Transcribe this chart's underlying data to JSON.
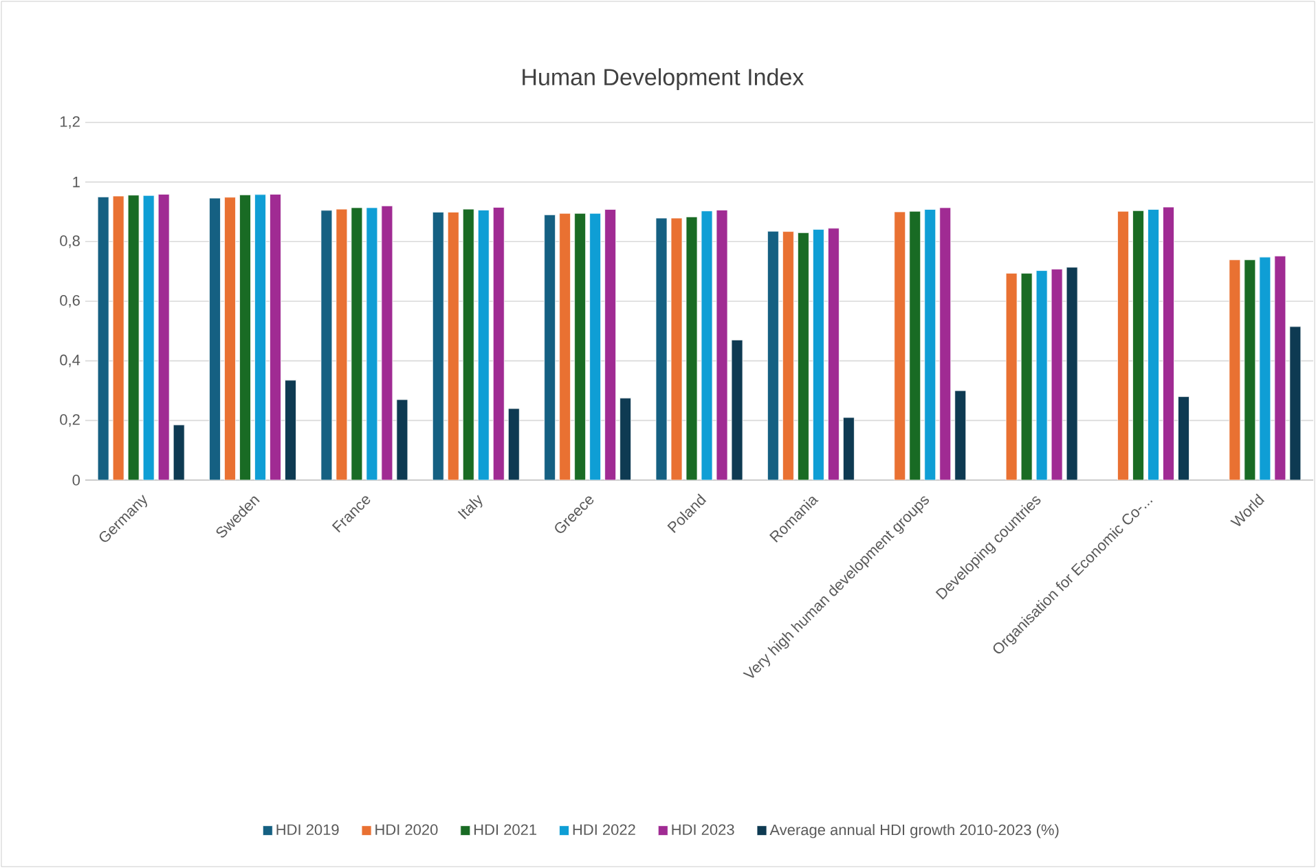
{
  "chart_data": {
    "type": "bar",
    "title": "Human Development Index",
    "categories": [
      "Germany",
      "Sweden",
      "France",
      "Italy",
      "Greece",
      "Poland",
      "Romania",
      "Very high human development groups",
      "Developing countries",
      "Organisation for Economic Co-...",
      "World"
    ],
    "series": [
      {
        "name": "HDI 2019",
        "color": "#156082",
        "values": [
          0.95,
          0.946,
          0.905,
          0.899,
          0.89,
          0.879,
          0.835,
          null,
          null,
          null,
          null
        ]
      },
      {
        "name": "HDI 2020",
        "color": "#e97132",
        "values": [
          0.953,
          0.949,
          0.909,
          0.899,
          0.895,
          0.879,
          0.834,
          0.9,
          0.694,
          0.902,
          0.739
        ]
      },
      {
        "name": "HDI 2021",
        "color": "#196b24",
        "values": [
          0.956,
          0.957,
          0.914,
          0.909,
          0.895,
          0.883,
          0.83,
          0.902,
          0.694,
          0.904,
          0.739
        ]
      },
      {
        "name": "HDI 2022",
        "color": "#0f9ed5",
        "values": [
          0.955,
          0.958,
          0.914,
          0.906,
          0.895,
          0.903,
          0.841,
          0.908,
          0.703,
          0.908,
          0.748
        ]
      },
      {
        "name": "HDI 2023",
        "color": "#a02b93",
        "values": [
          0.959,
          0.959,
          0.92,
          0.915,
          0.908,
          0.906,
          0.845,
          0.914,
          0.708,
          0.916,
          0.752
        ]
      },
      {
        "name": "Average annual HDI growth  2010-2023 (%)",
        "color": "#0e3a52",
        "values": [
          0.185,
          0.335,
          0.27,
          0.24,
          0.275,
          0.47,
          0.21,
          0.3,
          0.714,
          0.28,
          0.515
        ]
      }
    ],
    "ylim": [
      0,
      1.2
    ],
    "yticks": [
      {
        "value": 0,
        "label": "0"
      },
      {
        "value": 0.2,
        "label": "0,2"
      },
      {
        "value": 0.4,
        "label": "0,4"
      },
      {
        "value": 0.6,
        "label": "0,6"
      },
      {
        "value": 0.8,
        "label": "0,8"
      },
      {
        "value": 1,
        "label": "1"
      },
      {
        "value": 1.2,
        "label": "1,2"
      }
    ],
    "grid": "y",
    "legend": "bottom"
  }
}
